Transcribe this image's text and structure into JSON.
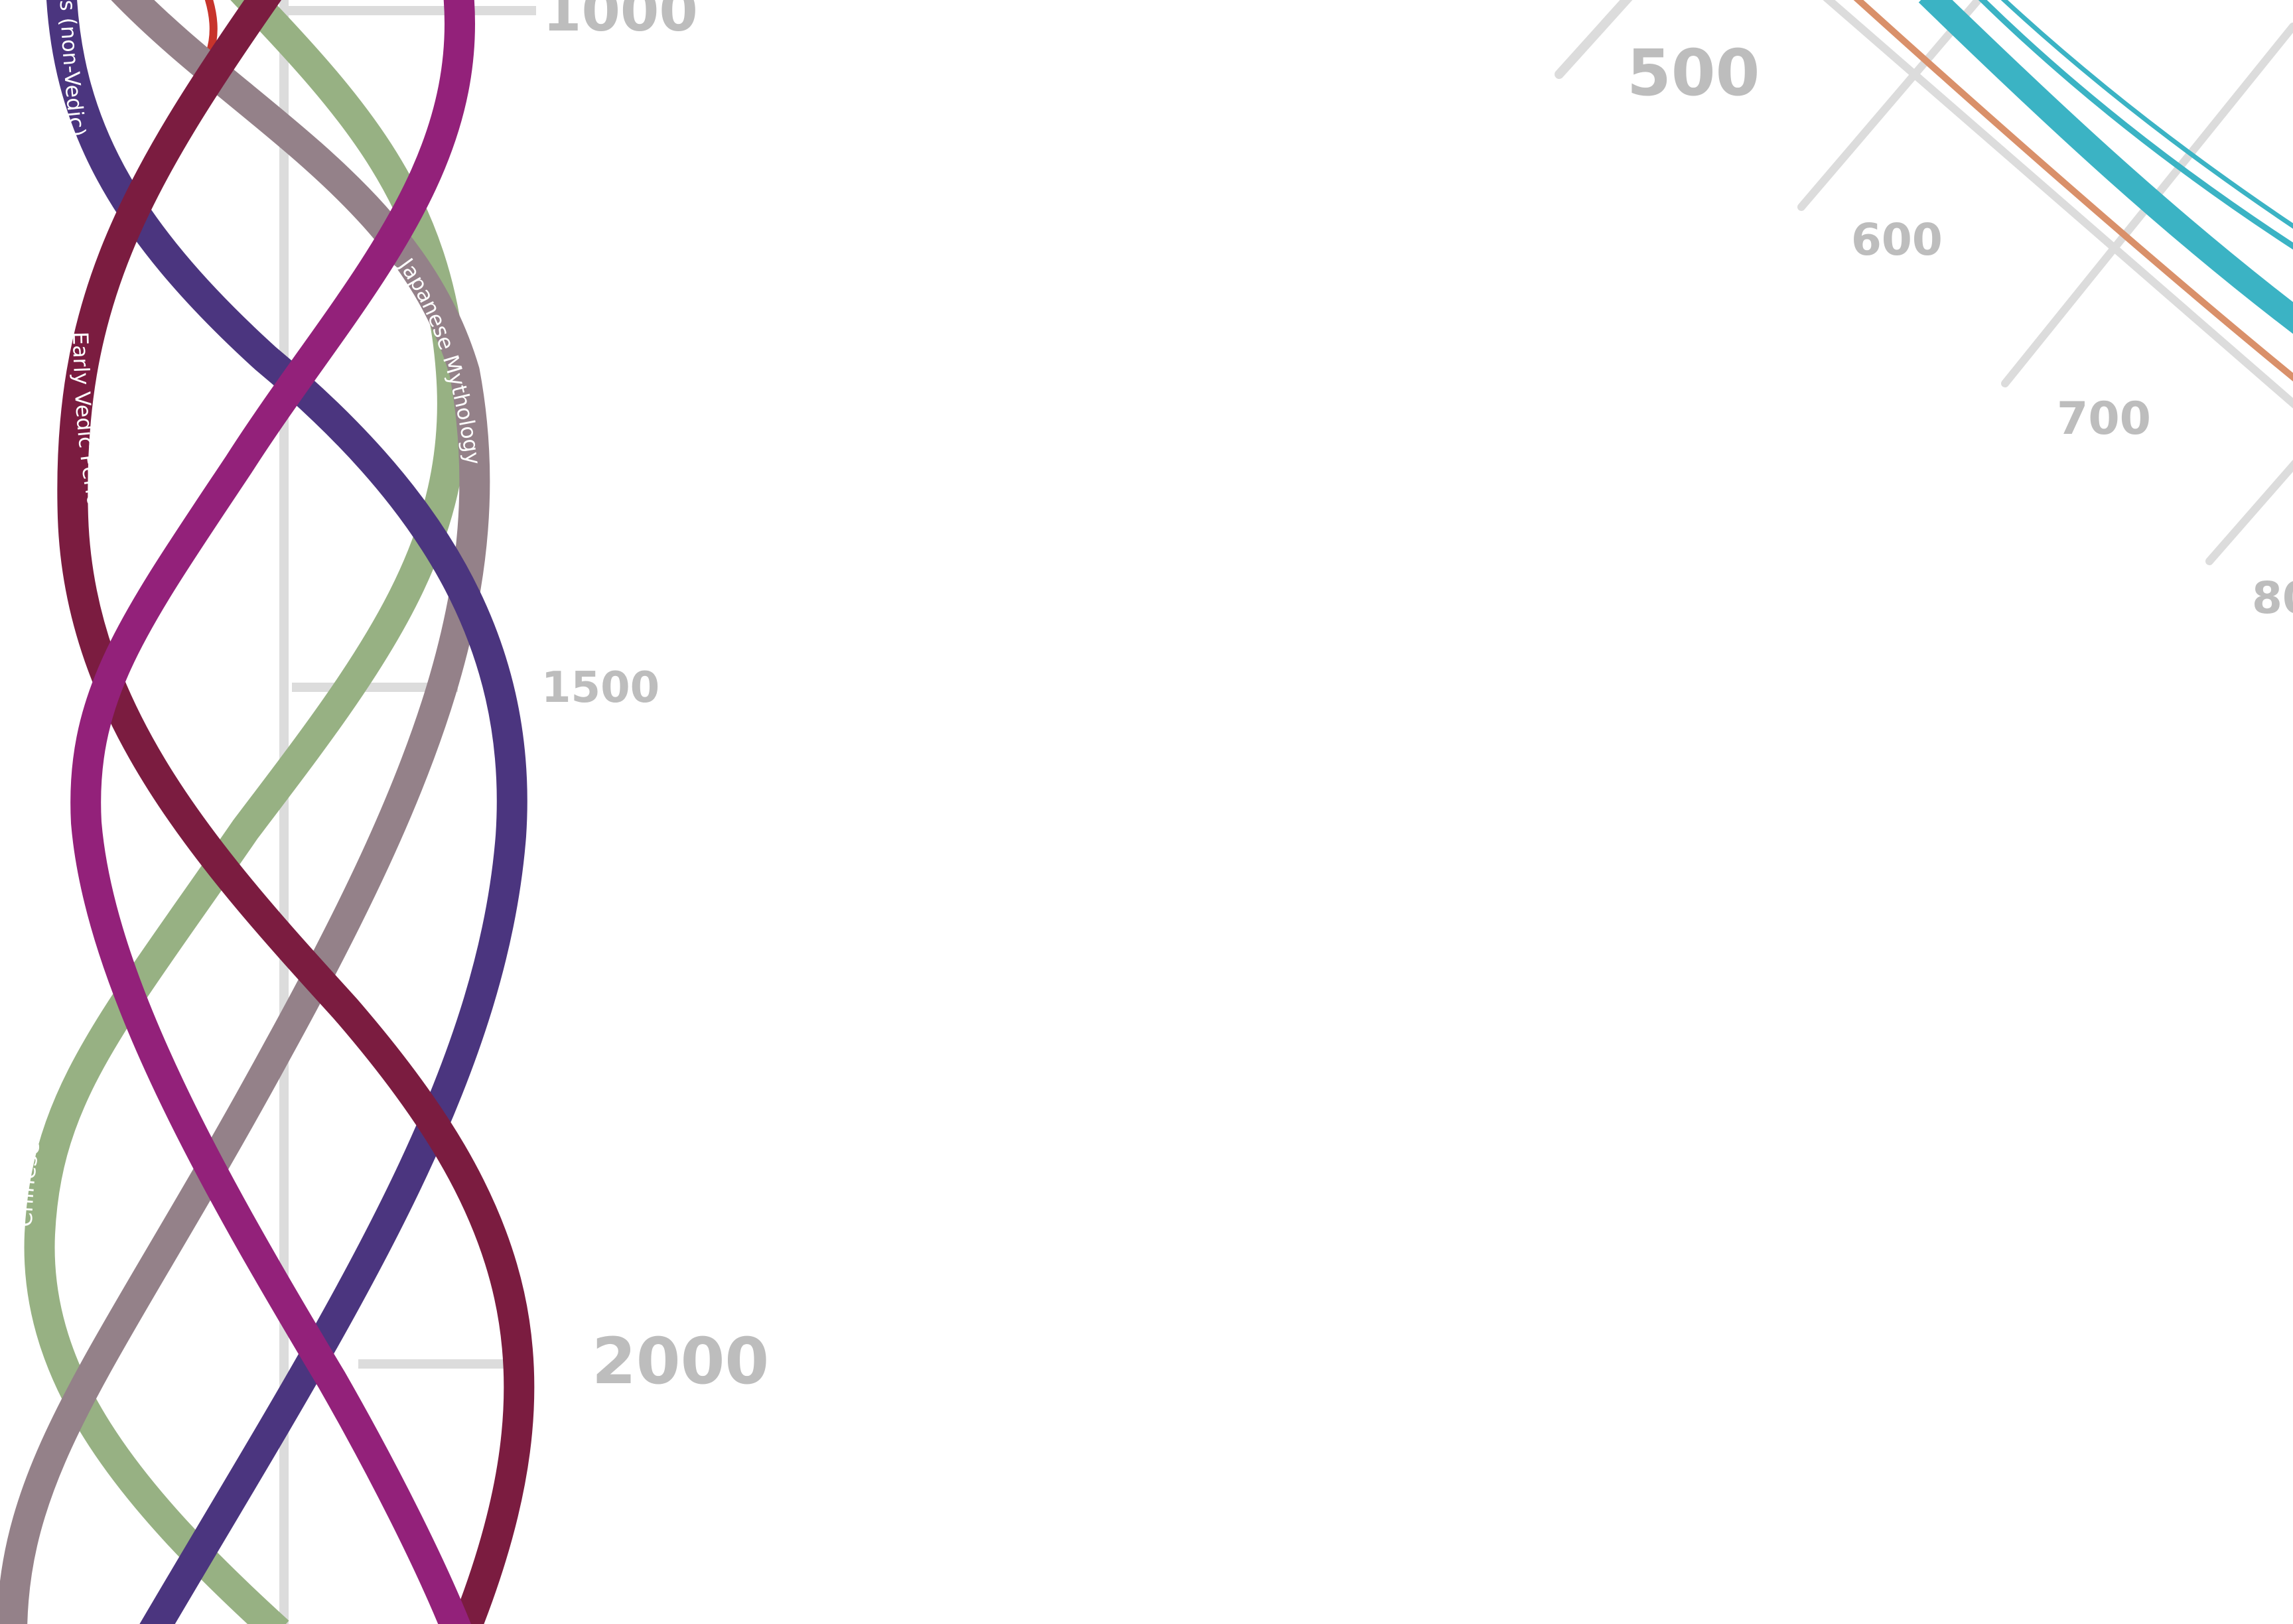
{
  "timeline_axis": {
    "ticks": [
      {
        "label": "1000"
      },
      {
        "label": "1500"
      },
      {
        "label": "2000"
      }
    ]
  },
  "radial_axis": {
    "ticks": [
      {
        "label": "500"
      },
      {
        "label": "600"
      },
      {
        "label": "700"
      },
      {
        "label": "80"
      }
    ]
  },
  "strands": [
    {
      "key": "non_vedic",
      "label": "ns (non-Vedic)",
      "color": "#4b357f"
    },
    {
      "key": "early_vedic",
      "label": "Early Vedic Period",
      "color": "#7b1c40"
    },
    {
      "key": "japanese",
      "label": "Japanese Mythology",
      "color": "#948189"
    },
    {
      "key": "chinese",
      "label": "Chinese Folk Taoism",
      "color": "#97b183"
    },
    {
      "key": "magenta",
      "label": "",
      "color": "#93217a"
    }
  ],
  "colors": {
    "axis_line": "#dcdcdc",
    "tick_text": "#bdbdbd",
    "teal": "#3bb3c4",
    "orange": "#d9906a",
    "red": "#c7342c"
  }
}
